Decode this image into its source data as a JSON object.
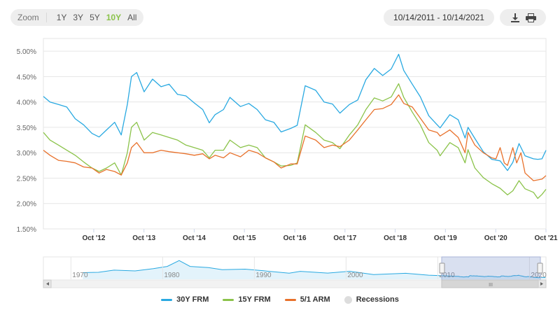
{
  "toolbar": {
    "zoom_label": "Zoom",
    "zoom_options": [
      "1Y",
      "3Y",
      "5Y",
      "10Y",
      "All"
    ],
    "active_zoom": "10Y",
    "date_range": "10/14/2011 - 10/14/2021",
    "download_icon": "download-icon",
    "print_icon": "print-icon"
  },
  "colors": {
    "frm30": "#29a9e1",
    "frm15": "#8bc34a",
    "arm51": "#e8712b",
    "recessions": "#dddddd"
  },
  "navigator": {
    "year_labels": [
      "1970",
      "1980",
      "1990",
      "2000",
      "2010",
      "2020"
    ],
    "scroll_thumb_label": "III"
  },
  "chart_data": {
    "type": "line",
    "x_tick_labels": [
      "Oct '12",
      "Oct '13",
      "Oct '14",
      "Oct '15",
      "Oct '16",
      "Oct '17",
      "Oct '18",
      "Oct '19",
      "Oct '20",
      "Oct '21"
    ],
    "y_tick_labels": [
      "1.50%",
      "2.00%",
      "2.50%",
      "3.00%",
      "3.50%",
      "4.00%",
      "4.50%",
      "5.00%"
    ],
    "xlim": [
      "2011-10-14",
      "2021-10-14"
    ],
    "ylim": [
      1.5,
      5.25
    ],
    "grid": true,
    "legend_position": "bottom",
    "series": [
      {
        "name": "30Y FRM",
        "points": [
          [
            "2011-10-14",
            4.11
          ],
          [
            "2011-12-01",
            4.0
          ],
          [
            "2012-02-01",
            3.95
          ],
          [
            "2012-04-01",
            3.9
          ],
          [
            "2012-06-01",
            3.67
          ],
          [
            "2012-08-01",
            3.55
          ],
          [
            "2012-10-01",
            3.38
          ],
          [
            "2012-11-22",
            3.31
          ],
          [
            "2013-01-15",
            3.45
          ],
          [
            "2013-03-15",
            3.6
          ],
          [
            "2013-05-02",
            3.35
          ],
          [
            "2013-06-15",
            3.95
          ],
          [
            "2013-07-15",
            4.5
          ],
          [
            "2013-08-22",
            4.58
          ],
          [
            "2013-10-15",
            4.2
          ],
          [
            "2013-12-15",
            4.45
          ],
          [
            "2014-02-15",
            4.3
          ],
          [
            "2014-04-15",
            4.35
          ],
          [
            "2014-06-15",
            4.15
          ],
          [
            "2014-08-15",
            4.12
          ],
          [
            "2014-10-15",
            3.98
          ],
          [
            "2014-12-15",
            3.85
          ],
          [
            "2015-02-01",
            3.59
          ],
          [
            "2015-03-15",
            3.75
          ],
          [
            "2015-05-15",
            3.85
          ],
          [
            "2015-07-01",
            4.09
          ],
          [
            "2015-09-15",
            3.91
          ],
          [
            "2015-11-15",
            3.97
          ],
          [
            "2016-01-15",
            3.85
          ],
          [
            "2016-03-15",
            3.65
          ],
          [
            "2016-05-15",
            3.6
          ],
          [
            "2016-07-07",
            3.41
          ],
          [
            "2016-09-15",
            3.48
          ],
          [
            "2016-11-01",
            3.54
          ],
          [
            "2016-12-29",
            4.32
          ],
          [
            "2017-03-15",
            4.23
          ],
          [
            "2017-05-15",
            4.0
          ],
          [
            "2017-07-15",
            3.96
          ],
          [
            "2017-09-07",
            3.78
          ],
          [
            "2017-11-15",
            3.95
          ],
          [
            "2018-01-15",
            4.04
          ],
          [
            "2018-03-15",
            4.44
          ],
          [
            "2018-05-15",
            4.66
          ],
          [
            "2018-07-15",
            4.52
          ],
          [
            "2018-09-15",
            4.65
          ],
          [
            "2018-11-08",
            4.94
          ],
          [
            "2018-12-15",
            4.62
          ],
          [
            "2019-02-15",
            4.35
          ],
          [
            "2019-04-15",
            4.1
          ],
          [
            "2019-06-15",
            3.73
          ],
          [
            "2019-08-15",
            3.55
          ],
          [
            "2019-09-05",
            3.49
          ],
          [
            "2019-11-15",
            3.75
          ],
          [
            "2020-01-15",
            3.65
          ],
          [
            "2020-03-05",
            3.29
          ],
          [
            "2020-03-26",
            3.5
          ],
          [
            "2020-05-15",
            3.28
          ],
          [
            "2020-07-15",
            3.02
          ],
          [
            "2020-09-15",
            2.87
          ],
          [
            "2020-11-15",
            2.84
          ],
          [
            "2021-01-07",
            2.65
          ],
          [
            "2021-02-15",
            2.81
          ],
          [
            "2021-04-01",
            3.18
          ],
          [
            "2021-05-15",
            2.94
          ],
          [
            "2021-07-15",
            2.88
          ],
          [
            "2021-08-15",
            2.87
          ],
          [
            "2021-09-15",
            2.88
          ],
          [
            "2021-10-14",
            3.05
          ]
        ]
      },
      {
        "name": "15Y FRM",
        "points": [
          [
            "2011-10-14",
            3.4
          ],
          [
            "2011-12-01",
            3.25
          ],
          [
            "2012-02-01",
            3.15
          ],
          [
            "2012-04-01",
            3.05
          ],
          [
            "2012-06-01",
            2.95
          ],
          [
            "2012-08-01",
            2.82
          ],
          [
            "2012-10-01",
            2.7
          ],
          [
            "2012-11-22",
            2.63
          ],
          [
            "2013-01-15",
            2.7
          ],
          [
            "2013-03-15",
            2.8
          ],
          [
            "2013-05-02",
            2.56
          ],
          [
            "2013-06-15",
            3.0
          ],
          [
            "2013-07-15",
            3.5
          ],
          [
            "2013-08-22",
            3.6
          ],
          [
            "2013-10-15",
            3.25
          ],
          [
            "2013-12-15",
            3.4
          ],
          [
            "2014-02-15",
            3.35
          ],
          [
            "2014-04-15",
            3.3
          ],
          [
            "2014-06-15",
            3.25
          ],
          [
            "2014-08-15",
            3.15
          ],
          [
            "2014-10-15",
            3.1
          ],
          [
            "2014-12-15",
            3.05
          ],
          [
            "2015-02-01",
            2.9
          ],
          [
            "2015-03-15",
            3.05
          ],
          [
            "2015-05-15",
            3.05
          ],
          [
            "2015-07-01",
            3.25
          ],
          [
            "2015-09-15",
            3.1
          ],
          [
            "2015-11-15",
            3.15
          ],
          [
            "2016-01-15",
            3.1
          ],
          [
            "2016-03-15",
            2.9
          ],
          [
            "2016-05-15",
            2.82
          ],
          [
            "2016-07-07",
            2.74
          ],
          [
            "2016-09-15",
            2.75
          ],
          [
            "2016-11-01",
            2.8
          ],
          [
            "2016-12-29",
            3.55
          ],
          [
            "2017-03-15",
            3.4
          ],
          [
            "2017-05-15",
            3.25
          ],
          [
            "2017-07-15",
            3.2
          ],
          [
            "2017-09-07",
            3.08
          ],
          [
            "2017-11-15",
            3.35
          ],
          [
            "2018-01-15",
            3.55
          ],
          [
            "2018-03-15",
            3.85
          ],
          [
            "2018-05-15",
            4.08
          ],
          [
            "2018-07-15",
            4.02
          ],
          [
            "2018-09-15",
            4.1
          ],
          [
            "2018-11-08",
            4.36
          ],
          [
            "2018-12-15",
            4.09
          ],
          [
            "2019-02-15",
            3.8
          ],
          [
            "2019-04-15",
            3.55
          ],
          [
            "2019-06-15",
            3.2
          ],
          [
            "2019-08-15",
            3.05
          ],
          [
            "2019-09-05",
            2.94
          ],
          [
            "2019-11-15",
            3.2
          ],
          [
            "2020-01-15",
            3.1
          ],
          [
            "2020-03-05",
            2.8
          ],
          [
            "2020-03-26",
            3.06
          ],
          [
            "2020-05-15",
            2.7
          ],
          [
            "2020-07-15",
            2.51
          ],
          [
            "2020-09-15",
            2.39
          ],
          [
            "2020-11-15",
            2.3
          ],
          [
            "2021-01-07",
            2.17
          ],
          [
            "2021-02-15",
            2.25
          ],
          [
            "2021-04-01",
            2.45
          ],
          [
            "2021-05-15",
            2.29
          ],
          [
            "2021-07-15",
            2.22
          ],
          [
            "2021-08-15",
            2.1
          ],
          [
            "2021-09-15",
            2.18
          ],
          [
            "2021-10-14",
            2.28
          ]
        ]
      },
      {
        "name": "5/1 ARM",
        "points": [
          [
            "2011-10-14",
            3.05
          ],
          [
            "2011-12-01",
            2.95
          ],
          [
            "2012-02-01",
            2.85
          ],
          [
            "2012-04-01",
            2.83
          ],
          [
            "2012-06-01",
            2.8
          ],
          [
            "2012-08-01",
            2.72
          ],
          [
            "2012-10-01",
            2.7
          ],
          [
            "2012-11-22",
            2.6
          ],
          [
            "2013-01-15",
            2.67
          ],
          [
            "2013-03-15",
            2.63
          ],
          [
            "2013-05-02",
            2.56
          ],
          [
            "2013-06-15",
            2.8
          ],
          [
            "2013-07-15",
            3.1
          ],
          [
            "2013-08-22",
            3.2
          ],
          [
            "2013-10-15",
            3.0
          ],
          [
            "2013-12-15",
            3.0
          ],
          [
            "2014-02-15",
            3.05
          ],
          [
            "2014-04-15",
            3.02
          ],
          [
            "2014-06-15",
            3.0
          ],
          [
            "2014-08-15",
            2.98
          ],
          [
            "2014-10-15",
            2.95
          ],
          [
            "2014-12-15",
            2.98
          ],
          [
            "2015-02-01",
            2.88
          ],
          [
            "2015-03-15",
            2.95
          ],
          [
            "2015-05-15",
            2.9
          ],
          [
            "2015-07-01",
            3.0
          ],
          [
            "2015-09-15",
            2.92
          ],
          [
            "2015-11-15",
            3.05
          ],
          [
            "2016-01-15",
            3.0
          ],
          [
            "2016-03-15",
            2.9
          ],
          [
            "2016-05-15",
            2.82
          ],
          [
            "2016-07-07",
            2.7
          ],
          [
            "2016-09-15",
            2.78
          ],
          [
            "2016-11-01",
            2.78
          ],
          [
            "2016-12-29",
            3.33
          ],
          [
            "2017-03-15",
            3.25
          ],
          [
            "2017-05-15",
            3.1
          ],
          [
            "2017-07-15",
            3.15
          ],
          [
            "2017-09-07",
            3.12
          ],
          [
            "2017-11-15",
            3.25
          ],
          [
            "2018-01-15",
            3.45
          ],
          [
            "2018-03-15",
            3.65
          ],
          [
            "2018-05-15",
            3.85
          ],
          [
            "2018-07-15",
            3.87
          ],
          [
            "2018-09-15",
            3.95
          ],
          [
            "2018-11-08",
            4.14
          ],
          [
            "2018-12-15",
            3.97
          ],
          [
            "2019-02-15",
            3.9
          ],
          [
            "2019-04-15",
            3.68
          ],
          [
            "2019-06-15",
            3.45
          ],
          [
            "2019-08-15",
            3.4
          ],
          [
            "2019-09-05",
            3.33
          ],
          [
            "2019-11-15",
            3.45
          ],
          [
            "2020-01-15",
            3.3
          ],
          [
            "2020-03-05",
            3.0
          ],
          [
            "2020-03-26",
            3.4
          ],
          [
            "2020-05-15",
            3.15
          ],
          [
            "2020-07-15",
            3.0
          ],
          [
            "2020-09-15",
            2.9
          ],
          [
            "2020-10-15",
            2.88
          ],
          [
            "2020-11-15",
            3.1
          ],
          [
            "2020-12-15",
            2.8
          ],
          [
            "2021-01-07",
            2.75
          ],
          [
            "2021-02-15",
            3.1
          ],
          [
            "2021-03-15",
            2.8
          ],
          [
            "2021-04-15",
            3.0
          ],
          [
            "2021-05-15",
            2.6
          ],
          [
            "2021-07-15",
            2.45
          ],
          [
            "2021-09-15",
            2.48
          ],
          [
            "2021-10-14",
            2.55
          ]
        ]
      }
    ],
    "legend": [
      "30Y FRM",
      "15Y FRM",
      "5/1 ARM",
      "Recessions"
    ]
  }
}
